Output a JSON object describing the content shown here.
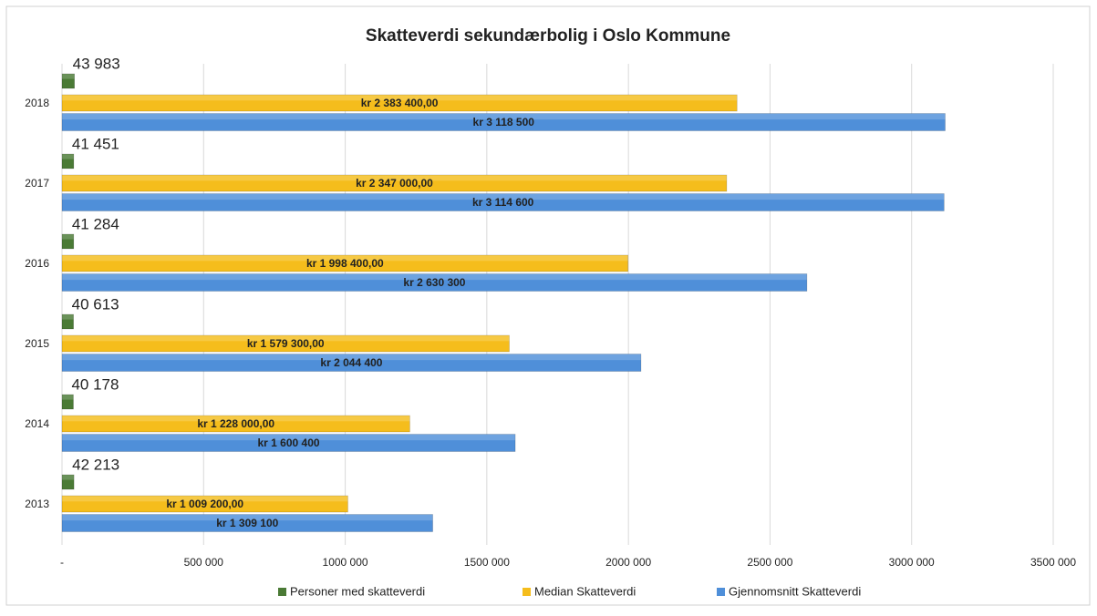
{
  "chart_data": {
    "type": "bar",
    "orientation": "horizontal",
    "title": "Skatteverdi sekundærbolig i Oslo Kommune",
    "categories": [
      "2013",
      "2014",
      "2015",
      "2016",
      "2017",
      "2018"
    ],
    "series": [
      {
        "name": "Personer med skatteverdi",
        "color": "#4a7a35",
        "values": [
          42213,
          40178,
          40613,
          41284,
          41451,
          43983
        ],
        "value_labels": [
          "42 213",
          "40 178",
          "40 613",
          "41 284",
          "41 451",
          "43 983"
        ]
      },
      {
        "name": "Median Skatteverdi",
        "color": "#f5bd1c",
        "values": [
          1009200,
          1228000,
          1579300,
          1998400,
          2347000,
          2383400
        ],
        "value_labels": [
          "kr 1 009 200,00",
          "kr 1 228 000,00",
          "kr 1 579 300,00",
          "kr 1 998 400,00",
          "kr 2 347 000,00",
          "kr 2 383 400,00"
        ]
      },
      {
        "name": "Gjennomsnitt Skatteverdi",
        "color": "#4f8fd9",
        "values": [
          1309100,
          1600400,
          2044400,
          2630300,
          3114600,
          3118500
        ],
        "value_labels": [
          "kr 1 309 100",
          "kr 1 600 400",
          "kr 2 044 400",
          "kr 2 630 300",
          "kr 3 114 600",
          "kr 3 118 500"
        ]
      }
    ],
    "xlim": [
      0,
      3500000
    ],
    "xticks": [
      {
        "value": 0,
        "label": "-"
      },
      {
        "value": 500000,
        "label": "500 000"
      },
      {
        "value": 1000000,
        "label": "1000 000"
      },
      {
        "value": 1500000,
        "label": "1500 000"
      },
      {
        "value": 2000000,
        "label": "2000 000"
      },
      {
        "value": 2500000,
        "label": "2500 000"
      },
      {
        "value": 3000000,
        "label": "3000 000"
      },
      {
        "value": 3500000,
        "label": "3500 000"
      }
    ],
    "grid": true,
    "legend": "bottom"
  }
}
